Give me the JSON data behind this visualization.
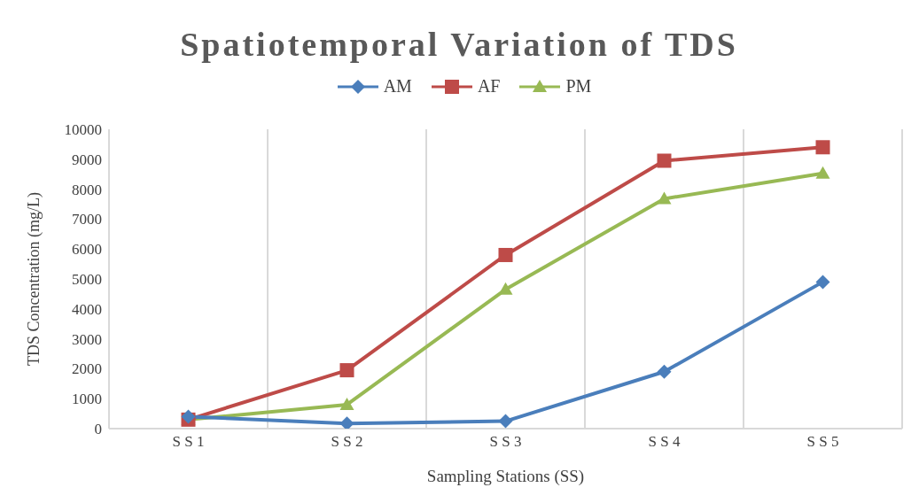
{
  "chart_data": {
    "type": "line",
    "title": "Spatiotemporal Variation of TDS",
    "xlabel": "Sampling Stations (SS)",
    "ylabel": "TDS Concentration (mg/L)",
    "categories": [
      "S S 1",
      "S S 2",
      "S S 3",
      "S S 4",
      "S S 5"
    ],
    "series": [
      {
        "name": "AM",
        "color": "#4a7ebb",
        "marker": "diamond",
        "values": [
          400,
          170,
          250,
          1900,
          4900
        ]
      },
      {
        "name": "AF",
        "color": "#be4b48",
        "marker": "square",
        "values": [
          300,
          1950,
          5800,
          8950,
          9400
        ]
      },
      {
        "name": "PM",
        "color": "#98b954",
        "marker": "triangle",
        "values": [
          300,
          800,
          4650,
          7680,
          8530
        ]
      }
    ],
    "ylim": [
      0,
      10000
    ],
    "yticks": [
      0,
      1000,
      2000,
      3000,
      4000,
      5000,
      6000,
      7000,
      8000,
      9000,
      10000
    ],
    "grid": "x",
    "legend": "top",
    "line_style": "solid"
  }
}
